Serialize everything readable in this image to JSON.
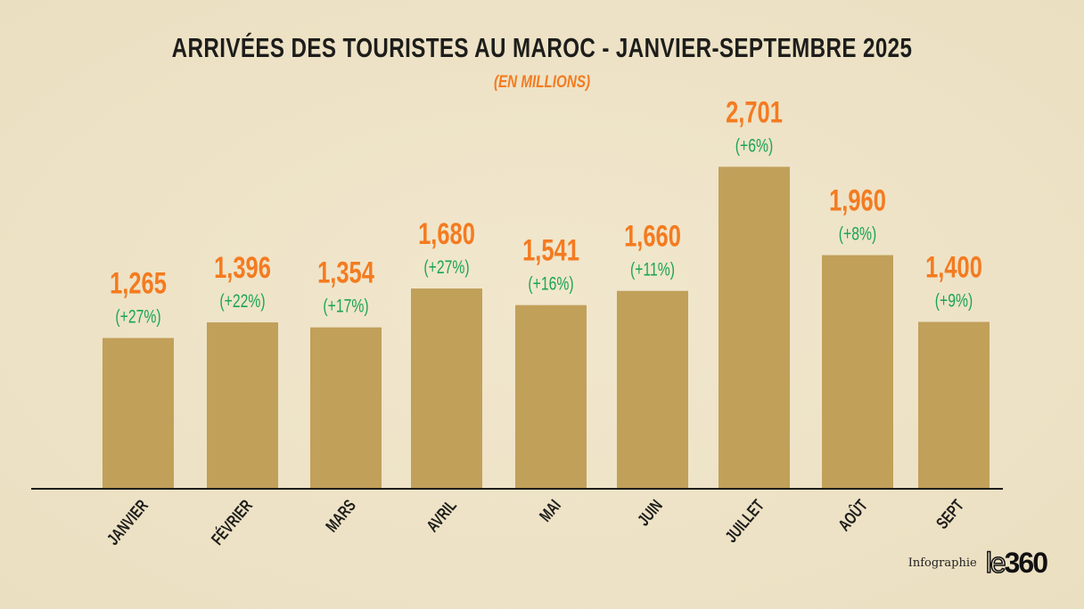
{
  "chart_data": {
    "type": "bar",
    "title": "ARRIVÉES DES TOURISTES AU MAROC - JANVIER-SEPTEMBRE 2025",
    "subtitle": "(EN MILLIONS)",
    "categories": [
      "JANVIER",
      "FÉVRIER",
      "MARS",
      "AVRIL",
      "MAI",
      "JUIN",
      "JUILLET",
      "AOÛT",
      "SEPT"
    ],
    "values": [
      1.265,
      1.396,
      1.354,
      1.68,
      1.541,
      1.66,
      2.701,
      1.96,
      1.4
    ],
    "value_labels": [
      "1,265",
      "1,396",
      "1,354",
      "1,680",
      "1,541",
      "1,660",
      "2,701",
      "1,960",
      "1,400"
    ],
    "growth_labels": [
      "(+27%)",
      "(+22%)",
      "(+17%)",
      "(+27%)",
      "(+16%)",
      "(+11%)",
      "(+6%)",
      "(+8%)",
      "(+9%)"
    ],
    "xlabel": "",
    "ylabel": "",
    "ylim": [
      0,
      4.1
    ],
    "grid": false,
    "colors": {
      "bar": "#c1a05a",
      "value": "#f47b20",
      "growth": "#1aa550"
    }
  },
  "footer": {
    "credit": "Infographie",
    "logo": "le360"
  }
}
